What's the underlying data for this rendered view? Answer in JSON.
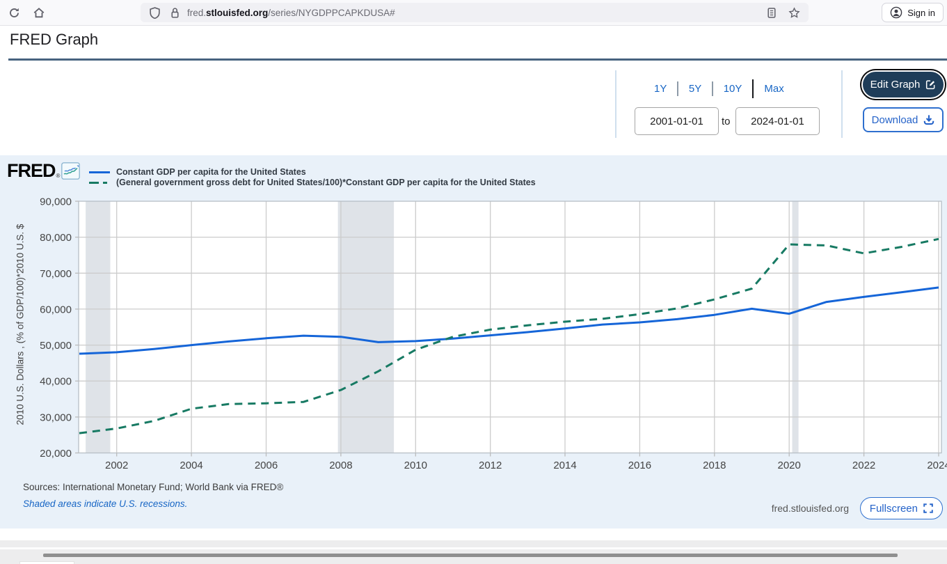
{
  "browser": {
    "url": {
      "prefix": "fred.",
      "domain": "stlouisfed.org",
      "path": "/series/NYGDPPCAPKDUSA#"
    },
    "sign_in_label": "Sign in"
  },
  "page": {
    "title": "FRED Graph"
  },
  "toolbar": {
    "range_buttons": [
      "1Y",
      "5Y",
      "10Y",
      "Max"
    ],
    "date_start": "2001-01-01",
    "to_label": "to",
    "date_end": "2024-01-01",
    "edit_graph_label": "Edit Graph",
    "download_label": "Download"
  },
  "chart": {
    "brand": "FRED",
    "brand_mark": "®",
    "ylabel": "2010 U.S. Dollars , (% of GDP/100)*2010 U.S. $",
    "sources": "Sources: International Monetary Fund; World Bank via FRED®",
    "recessions_note": "Shaded areas indicate U.S. recessions.",
    "watermark": "fred.stlouisfed.org",
    "fullscreen_label": "Fullscreen"
  },
  "chart_data": {
    "type": "line",
    "x": [
      2001,
      2002,
      2003,
      2004,
      2005,
      2006,
      2007,
      2008,
      2009,
      2010,
      2011,
      2012,
      2013,
      2014,
      2015,
      2016,
      2017,
      2018,
      2019,
      2020,
      2021,
      2022,
      2023,
      2024
    ],
    "series": [
      {
        "name": "Constant GDP per capita for the United States",
        "color": "#1565d8",
        "style": "solid",
        "values": [
          47600,
          48000,
          48900,
          50000,
          51000,
          51900,
          52600,
          52300,
          50800,
          51100,
          51800,
          52700,
          53600,
          54600,
          55700,
          56300,
          57200,
          58400,
          60100,
          58700,
          62000,
          63400,
          64700,
          66000
        ]
      },
      {
        "name": "(General government gross debt for United States/100)*Constant GDP per capita for the United States",
        "color": "#177a63",
        "style": "dashed",
        "values": [
          25500,
          26800,
          28900,
          32300,
          33600,
          33800,
          34200,
          37500,
          42700,
          48700,
          52300,
          54300,
          55500,
          56500,
          57300,
          58600,
          60200,
          62700,
          65700,
          78000,
          77700,
          75500,
          77300,
          79500
        ]
      }
    ],
    "xticks": [
      2002,
      2004,
      2006,
      2008,
      2010,
      2012,
      2014,
      2016,
      2018,
      2020,
      2022,
      2024
    ],
    "yticks": [
      20000,
      30000,
      40000,
      50000,
      60000,
      70000,
      80000,
      90000
    ],
    "xlim": [
      2001,
      2024
    ],
    "ylim": [
      20000,
      90000
    ],
    "grid": true,
    "legend_position": "top-left",
    "recession_bands": [
      [
        2001.17,
        2001.83
      ],
      [
        2007.92,
        2009.42
      ],
      [
        2020.08,
        2020.25
      ]
    ],
    "band_color": "#dfe3e8",
    "axis_text_color": "#444444"
  }
}
